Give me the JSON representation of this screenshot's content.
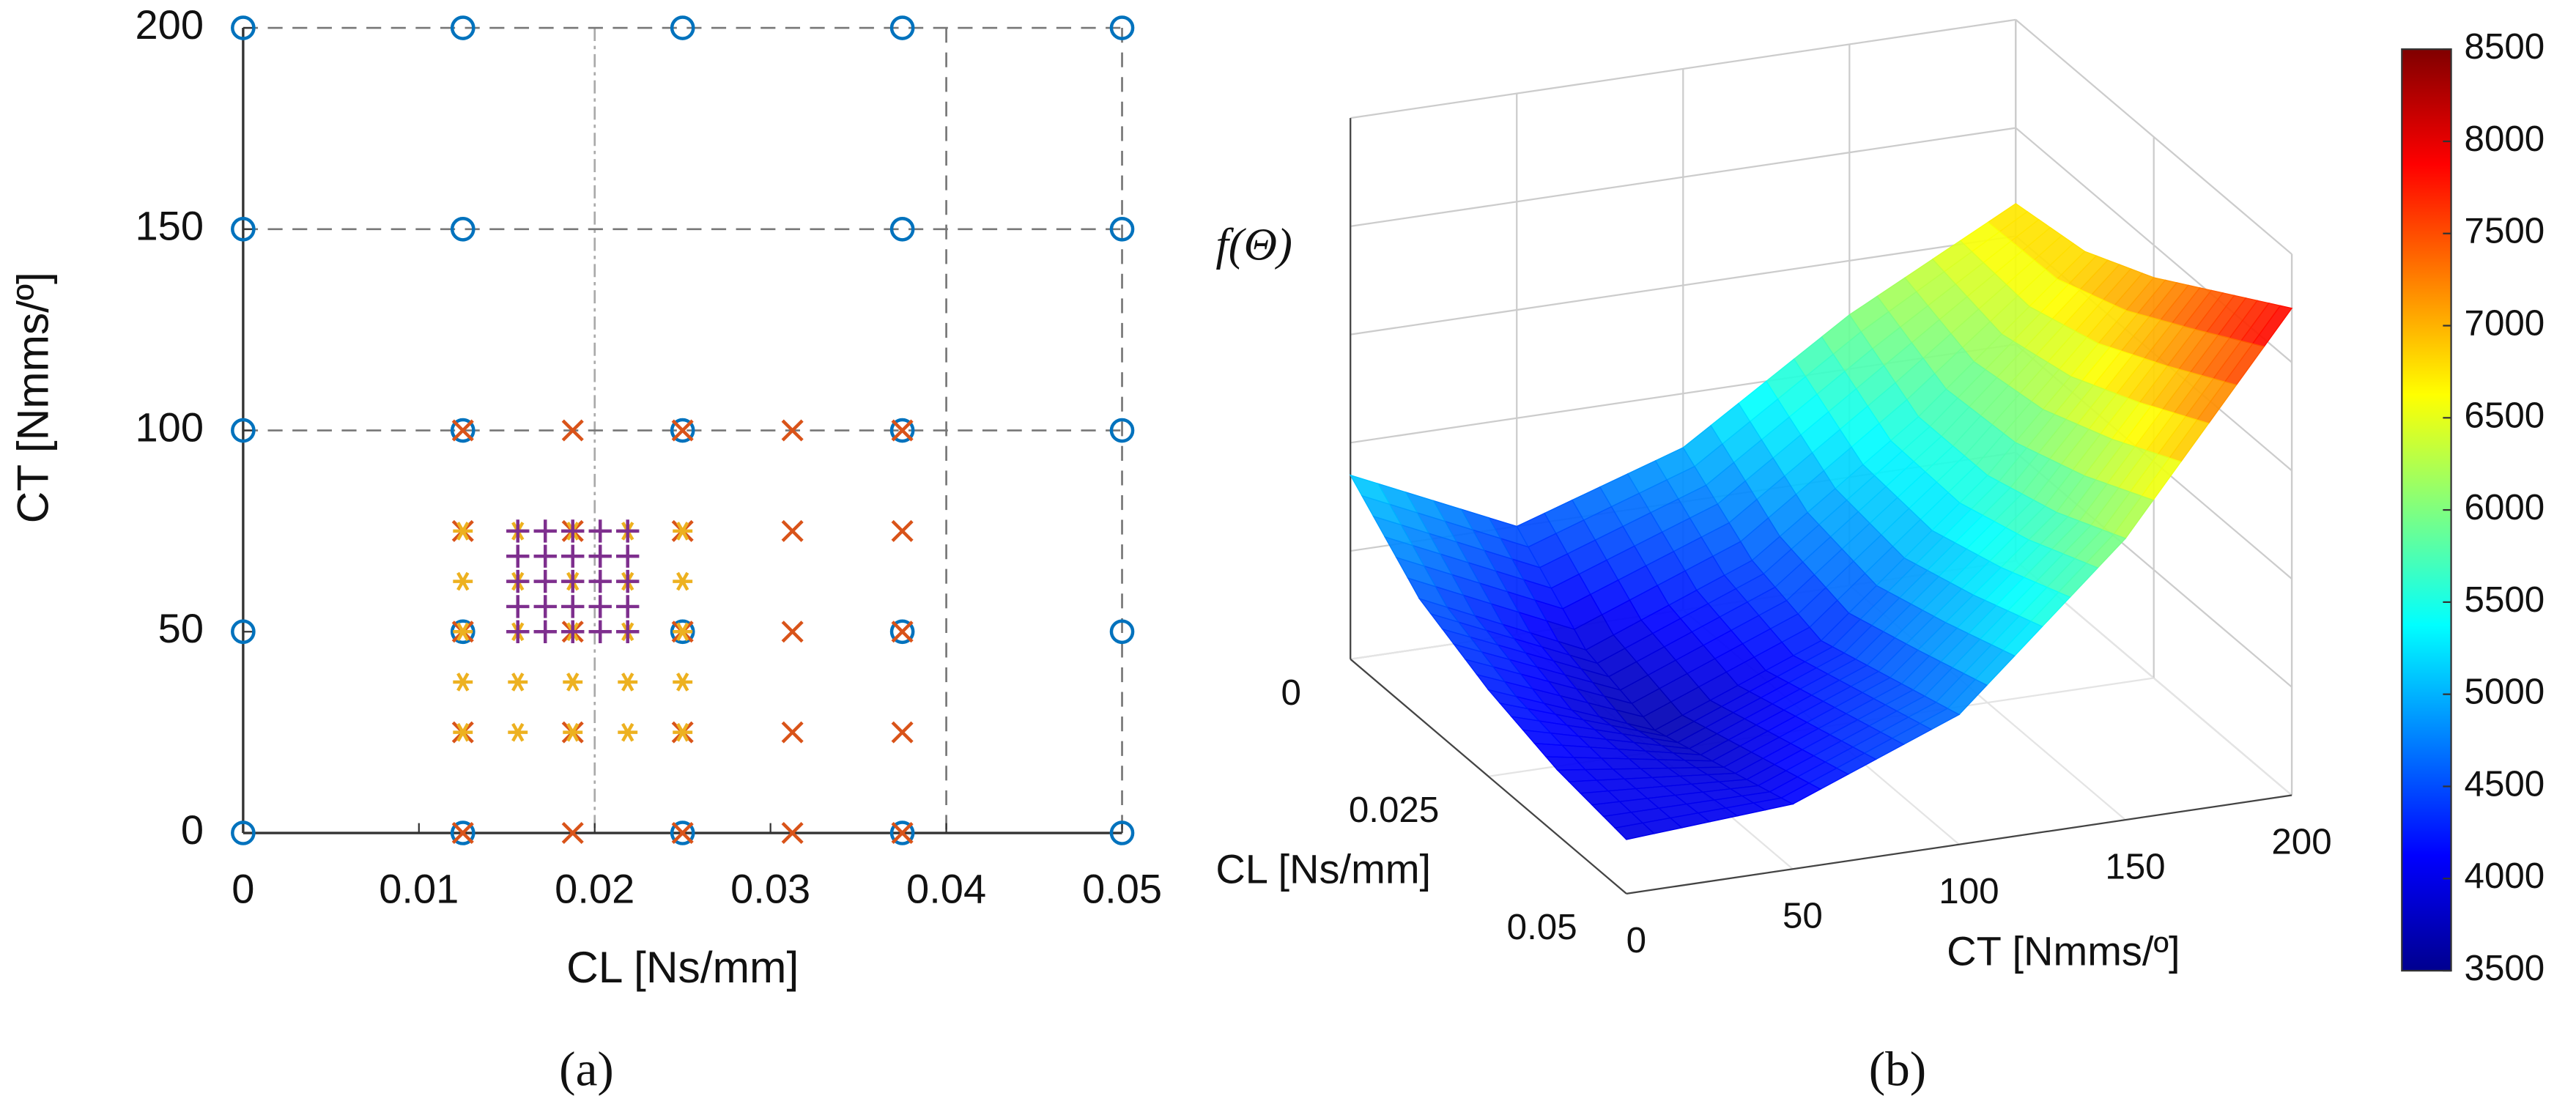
{
  "chart_data": [
    {
      "type": "scatter",
      "caption": "(a)",
      "xlabel": "CL [Ns/mm]",
      "ylabel": "CT [Nmms/º]",
      "xlim": [
        0,
        0.05
      ],
      "ylim": [
        0,
        200
      ],
      "xticks": [
        0,
        0.01,
        0.02,
        0.03,
        0.04,
        0.05
      ],
      "yticks": [
        0,
        50,
        100,
        150,
        200
      ],
      "x_guides": [
        0.02,
        0.04,
        0.05
      ],
      "y_guides": [
        100,
        150,
        200
      ],
      "series": [
        {
          "color": "#0072bd",
          "marker": "o",
          "x": [
            0,
            0.0125,
            0.025,
            0.0375,
            0.05,
            0,
            0.0125,
            0.025,
            0.0375,
            0.05,
            0,
            0.0125,
            0.025,
            0.0375,
            0.05,
            0,
            0.0125,
            0.0375,
            0.05,
            0,
            0.0125,
            0.025,
            0.0375,
            0.05
          ],
          "y": [
            0,
            0,
            0,
            0,
            0,
            50,
            50,
            50,
            50,
            50,
            100,
            100,
            100,
            100,
            100,
            150,
            150,
            150,
            150,
            200,
            200,
            200,
            200,
            200
          ]
        },
        {
          "color": "#d95319",
          "marker": "x",
          "x": [
            0.0125,
            0.01875,
            0.025,
            0.03125,
            0.0375,
            0.0125,
            0.01875,
            0.025,
            0.03125,
            0.0375,
            0.0125,
            0.01875,
            0.025,
            0.03125,
            0.0375,
            0.0125,
            0.01875,
            0.025,
            0.03125,
            0.0375,
            0.0125,
            0.01875,
            0.025,
            0.03125,
            0.0375
          ],
          "y": [
            0,
            0,
            0,
            0,
            0,
            25,
            25,
            25,
            25,
            25,
            50,
            50,
            50,
            50,
            50,
            75,
            75,
            75,
            75,
            75,
            100,
            100,
            100,
            100,
            100
          ]
        },
        {
          "color": "#edb120",
          "marker": "*",
          "x": [
            0.0125,
            0.015625,
            0.01875,
            0.021875,
            0.025,
            0.0125,
            0.015625,
            0.01875,
            0.021875,
            0.025,
            0.0125,
            0.015625,
            0.01875,
            0.021875,
            0.025,
            0.0125,
            0.015625,
            0.01875,
            0.021875,
            0.025,
            0.0125,
            0.015625,
            0.01875,
            0.021875,
            0.025
          ],
          "y": [
            25,
            25,
            25,
            25,
            25,
            37.5,
            37.5,
            37.5,
            37.5,
            37.5,
            50,
            50,
            50,
            50,
            50,
            62.5,
            62.5,
            62.5,
            62.5,
            62.5,
            75,
            75,
            75,
            75,
            75
          ]
        },
        {
          "color": "#7e2f8e",
          "marker": "+",
          "x": [
            0.015625,
            0.0171875,
            0.01875,
            0.0203125,
            0.021875,
            0.015625,
            0.0171875,
            0.01875,
            0.0203125,
            0.021875,
            0.015625,
            0.0171875,
            0.01875,
            0.0203125,
            0.021875,
            0.015625,
            0.0171875,
            0.01875,
            0.0203125,
            0.021875,
            0.015625,
            0.0171875,
            0.01875,
            0.0203125,
            0.021875
          ],
          "y": [
            50,
            50,
            50,
            50,
            50,
            56.25,
            56.25,
            56.25,
            56.25,
            56.25,
            62.5,
            62.5,
            62.5,
            62.5,
            62.5,
            68.75,
            68.75,
            68.75,
            68.75,
            68.75,
            75,
            75,
            75,
            75,
            75
          ]
        }
      ]
    },
    {
      "type": "surface",
      "caption": "(b)",
      "zlabel": "f(Θ)",
      "xlabel": "CT [Nmms/º]",
      "ylabel": "CL [Ns/mm]",
      "x": [
        0,
        50,
        100,
        150,
        200
      ],
      "y": [
        0,
        0.0125,
        0.025,
        0.0375,
        0.05
      ],
      "z": [
        [
          5200,
          4500,
          5000,
          6000,
          6800
        ],
        [
          4600,
          3900,
          4500,
          5600,
          6900
        ],
        [
          4300,
          3700,
          4300,
          5600,
          7200
        ],
        [
          4100,
          3900,
          4500,
          5800,
          7600
        ],
        [
          4000,
          4100,
          4700,
          6100,
          8000
        ]
      ],
      "xlim": [
        0,
        200
      ],
      "ylim": [
        0,
        0.05
      ],
      "zlim": [
        3500,
        8500
      ],
      "xticks": [
        0,
        50,
        100,
        150,
        200
      ],
      "yticks": [
        0,
        0.025,
        0.05
      ],
      "colormap": "jet",
      "colorbar": {
        "lim": [
          3500,
          8500
        ],
        "ticks": [
          3500,
          4000,
          4500,
          5000,
          5500,
          6000,
          6500,
          7000,
          7500,
          8000,
          8500
        ]
      }
    }
  ]
}
